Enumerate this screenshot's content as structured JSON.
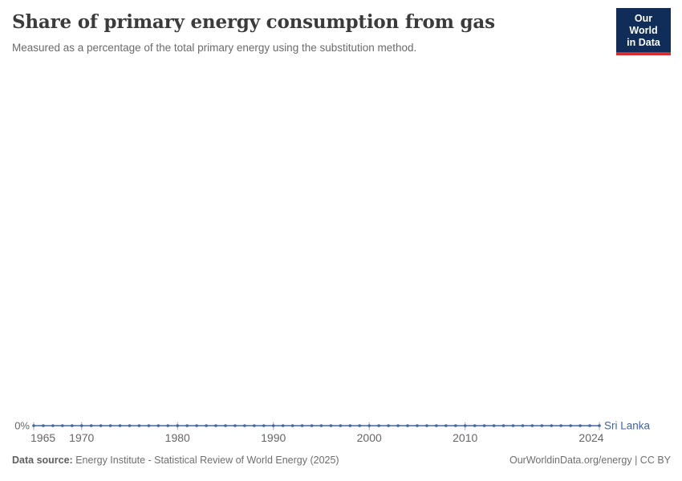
{
  "header": {
    "title": "Share of primary energy consumption from gas",
    "subtitle": "Measured as a percentage of the total primary energy using the substitution method."
  },
  "logo": {
    "line1": "Our World",
    "line2": "in Data",
    "background_color": "#0f2d58",
    "accent_color": "#d3302f"
  },
  "chart_data": {
    "type": "line",
    "title": "Share of primary energy consumption from gas",
    "subtitle": "Measured as a percentage of the total primary energy using the substitution method.",
    "x": [
      1965,
      1966,
      1967,
      1968,
      1969,
      1970,
      1971,
      1972,
      1973,
      1974,
      1975,
      1976,
      1977,
      1978,
      1979,
      1980,
      1981,
      1982,
      1983,
      1984,
      1985,
      1986,
      1987,
      1988,
      1989,
      1990,
      1991,
      1992,
      1993,
      1994,
      1995,
      1996,
      1997,
      1998,
      1999,
      2000,
      2001,
      2002,
      2003,
      2004,
      2005,
      2006,
      2007,
      2008,
      2009,
      2010,
      2011,
      2012,
      2013,
      2014,
      2015,
      2016,
      2017,
      2018,
      2019,
      2020,
      2021,
      2022,
      2023,
      2024
    ],
    "series": [
      {
        "name": "Sri Lanka",
        "color": "#4165a5",
        "values": [
          0,
          0,
          0,
          0,
          0,
          0,
          0,
          0,
          0,
          0,
          0,
          0,
          0,
          0,
          0,
          0,
          0,
          0,
          0,
          0,
          0,
          0,
          0,
          0,
          0,
          0,
          0,
          0,
          0,
          0,
          0,
          0,
          0,
          0,
          0,
          0,
          0,
          0,
          0,
          0,
          0,
          0,
          0,
          0,
          0,
          0,
          0,
          0,
          0,
          0,
          0,
          0,
          0,
          0,
          0,
          0,
          0,
          0,
          0,
          0
        ]
      }
    ],
    "unit": "%",
    "xlabel": "",
    "ylabel": "",
    "x_tick_years": [
      1965,
      1970,
      1980,
      1990,
      2000,
      2010,
      2024
    ],
    "y_tick_labels": [
      "0%"
    ],
    "grid": false,
    "legend_position": "end-of-line",
    "marker": "circle",
    "axis_text_color": "#666666",
    "tick_mark_color": "#a6a6a6"
  },
  "footer": {
    "datasource_label": "Data source:",
    "datasource_text": " Energy Institute - Statistical Review of World Energy (2025)",
    "link": "OurWorldinData.org/energy | CC BY"
  }
}
